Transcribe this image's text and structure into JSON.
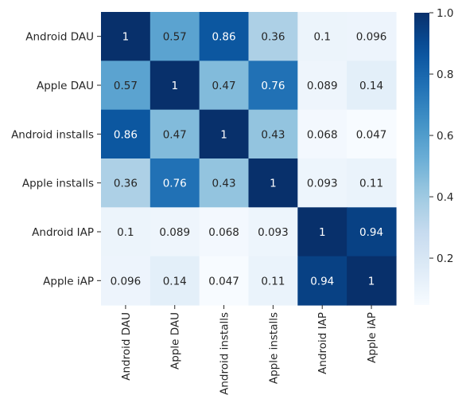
{
  "chart_data": {
    "type": "heatmap",
    "title": "",
    "xlabel": "",
    "ylabel": "",
    "row_labels": [
      "Android DAU",
      "Apple DAU",
      "Android installs",
      "Apple installs",
      "Android IAP",
      "Apple iAP"
    ],
    "col_labels": [
      "Android DAU",
      "Apple DAU",
      "Android installs",
      "Apple installs",
      "Android IAP",
      "Apple iAP"
    ],
    "values": [
      [
        1,
        0.57,
        0.86,
        0.36,
        0.1,
        0.096
      ],
      [
        0.57,
        1,
        0.47,
        0.76,
        0.089,
        0.14
      ],
      [
        0.86,
        0.47,
        1,
        0.43,
        0.068,
        0.047
      ],
      [
        0.36,
        0.76,
        0.43,
        1,
        0.093,
        0.11
      ],
      [
        0.1,
        0.089,
        0.068,
        0.093,
        1,
        0.94
      ],
      [
        0.096,
        0.14,
        0.047,
        0.11,
        0.94,
        1
      ]
    ],
    "annotations": [
      [
        "1",
        "0.57",
        "0.86",
        "0.36",
        "0.1",
        "0.096"
      ],
      [
        "0.57",
        "1",
        "0.47",
        "0.76",
        "0.089",
        "0.14"
      ],
      [
        "0.86",
        "0.47",
        "1",
        "0.43",
        "0.068",
        "0.047"
      ],
      [
        "0.36",
        "0.76",
        "0.43",
        "1",
        "0.093",
        "0.11"
      ],
      [
        "0.1",
        "0.089",
        "0.068",
        "0.093",
        "1",
        "0.94"
      ],
      [
        "0.096",
        "0.14",
        "0.047",
        "0.11",
        "0.94",
        "1"
      ]
    ],
    "colormap": "Blues",
    "colorbar": {
      "range": [
        0.047,
        1.0
      ],
      "ticks": [
        0.2,
        0.4,
        0.6,
        0.8,
        1.0
      ],
      "tick_labels": [
        "0.2",
        "0.4",
        "0.6",
        "0.8",
        "1.0"
      ]
    },
    "grid": false
  }
}
